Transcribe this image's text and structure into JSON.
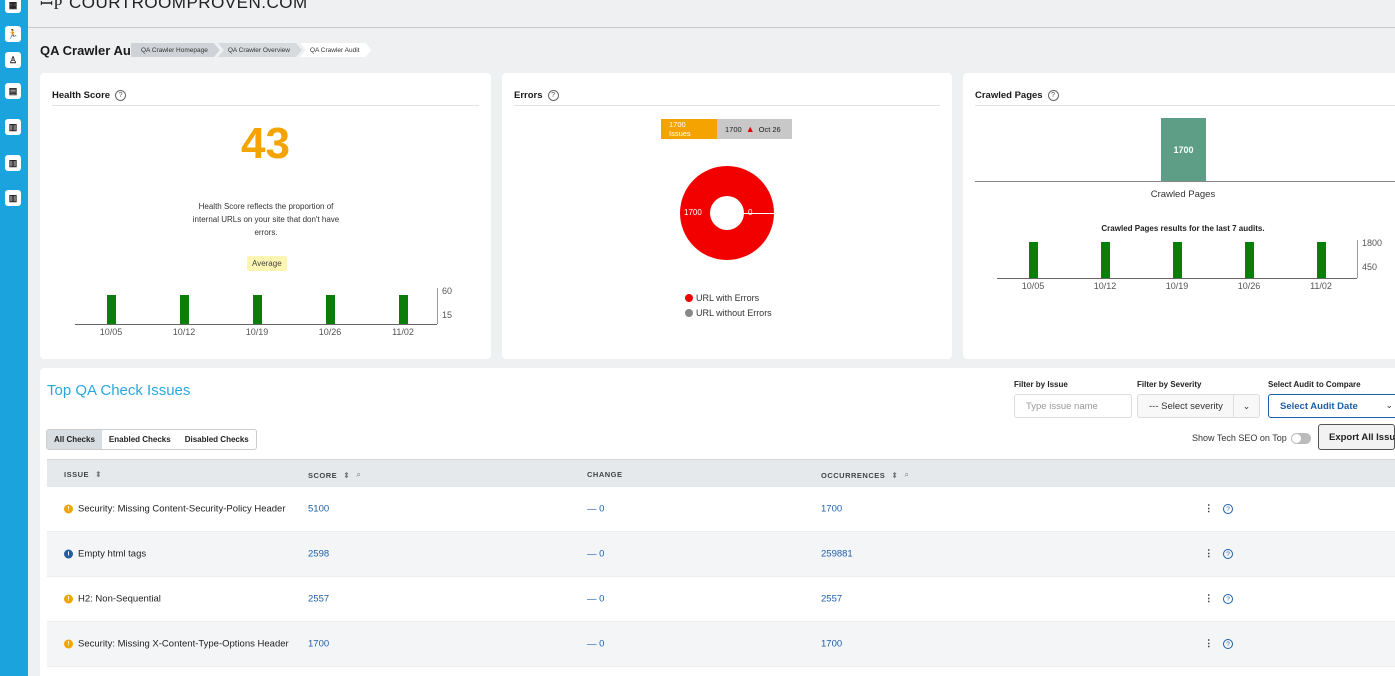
{
  "rail": {
    "icons": [
      "chart-icon",
      "running-person-icon",
      "person-icon",
      "document-icon",
      "bar-chart-icon",
      "bar-chart-icon",
      "bar-chart-icon"
    ]
  },
  "brand": {
    "logo": "ꟷP",
    "name": "COURTROOMPROVEN.COM"
  },
  "page_title": "QA Crawler Audit",
  "breadcrumbs": [
    "QA Crawler Homepage",
    "QA Crawler Overview",
    "QA Crawler Audit"
  ],
  "health": {
    "title": "Health Score",
    "score": "43",
    "desc": "Health Score reflects the proportion of internal URLs on your site that don't have errors.",
    "badge": "Average",
    "axis_top": "60",
    "axis_bottom": "15",
    "history": {
      "dates": [
        "10/05",
        "10/12",
        "10/19",
        "10/26",
        "11/02"
      ],
      "values": [
        43,
        43,
        43,
        43,
        43
      ],
      "max": 60
    }
  },
  "errors": {
    "title": "Errors",
    "pill_issues": "1700 Issues",
    "pill_value": "1700",
    "pill_date": "Oct 26",
    "donut_left": "1700",
    "donut_right": "0",
    "legend_with": "URL with Errors",
    "legend_without": "URL without Errors",
    "colors": {
      "with": "#f20000",
      "without": "#888888"
    }
  },
  "crawled": {
    "title": "Crawled Pages",
    "value": "1700",
    "category": "Crawled Pages",
    "subtitle": "Crawled Pages results for the last 7 audits.",
    "axis_top": "1800",
    "axis_bottom": "450",
    "history": {
      "dates": [
        "10/05",
        "10/12",
        "10/19",
        "10/26",
        "11/02"
      ],
      "values": [
        1700,
        1700,
        1700,
        1700,
        1700
      ],
      "max": 1800
    }
  },
  "issues": {
    "title": "Top QA Check Issues",
    "filter_issue_label": "Filter by Issue",
    "filter_issue_placeholder": "Type issue name",
    "filter_severity_label": "Filter by Severity",
    "filter_severity_value": "--- Select severity",
    "compare_label": "Select Audit to Compare",
    "compare_value": "Select Audit Date",
    "tabs": [
      "All Checks",
      "Enabled Checks",
      "Disabled Checks"
    ],
    "tech_seo_label": "Show Tech SEO on Top",
    "export_label": "Export All Issues",
    "columns": {
      "issue": "ISSUE",
      "score": "SCORE",
      "change": "CHANGE",
      "occurrences": "OCCURRENCES"
    },
    "rows": [
      {
        "severity": "warning",
        "issue": "Security: Missing Content-Security-Policy Header",
        "score": "5100",
        "change": "— 0",
        "occurrences": "1700"
      },
      {
        "severity": "info",
        "issue": "Empty html tags",
        "score": "2598",
        "change": "— 0",
        "occurrences": "259881"
      },
      {
        "severity": "warning",
        "issue": "H2: Non-Sequential",
        "score": "2557",
        "change": "— 0",
        "occurrences": "2557"
      },
      {
        "severity": "warning",
        "issue": "Security: Missing X-Content-Type-Options Header",
        "score": "1700",
        "change": "— 0",
        "occurrences": "1700"
      }
    ],
    "severity_colors": {
      "warning": "#f5a300",
      "info": "#1c5fa8"
    },
    "bar_color": "#0b7d0b"
  }
}
